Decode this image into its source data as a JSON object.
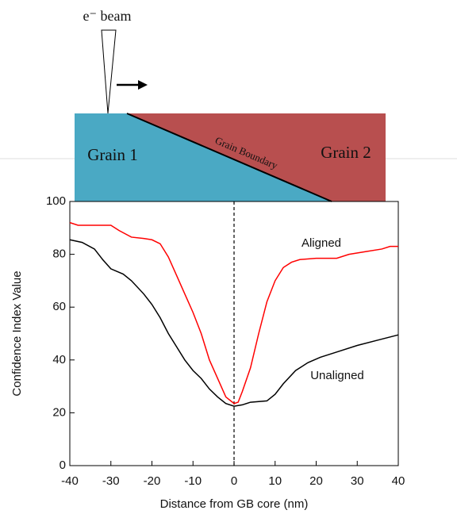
{
  "diagram": {
    "beam_label": "e⁻ beam",
    "grain_1": "Grain 1",
    "grain_2": "Grain 2",
    "boundary": "Grain Boundary"
  },
  "chart_data": {
    "type": "line",
    "x_label": "Distance from GB core (nm)",
    "y_label": "Confidence Index Value",
    "xlim": [
      -40,
      40
    ],
    "ylim": [
      0,
      100
    ],
    "xticks": [
      -40,
      -30,
      -20,
      -10,
      0,
      10,
      20,
      30,
      40
    ],
    "yticks": [
      0,
      20,
      40,
      60,
      80,
      100
    ],
    "vline": 0,
    "series": [
      {
        "name": "Aligned",
        "color": "#ff0000",
        "x": [
          -40,
          -38,
          -35,
          -30,
          -28,
          -25,
          -22,
          -20,
          -18,
          -16,
          -14,
          -12,
          -10,
          -8,
          -6,
          -4,
          -2,
          0,
          1,
          2,
          4,
          6,
          8,
          10,
          12,
          14,
          16,
          20,
          25,
          28,
          32,
          36,
          38,
          40
        ],
        "values": [
          92,
          91,
          91,
          91,
          89,
          86.5,
          86,
          85.5,
          84,
          79,
          72,
          65,
          58,
          50,
          40,
          33,
          26,
          23.5,
          24,
          28,
          37,
          50,
          62,
          70,
          75,
          77,
          78,
          78.5,
          78.5,
          80,
          81,
          82,
          83,
          83
        ]
      },
      {
        "name": "Unaligned",
        "color": "#000000",
        "x": [
          -40,
          -37,
          -34,
          -32,
          -30,
          -27,
          -25,
          -22,
          -20,
          -18,
          -16,
          -14,
          -12,
          -10,
          -8,
          -6,
          -4,
          -2,
          0,
          2,
          4,
          8,
          10,
          12,
          15,
          18,
          21,
          25,
          30,
          35,
          40
        ],
        "values": [
          85.5,
          84.5,
          82,
          78,
          74.5,
          72.5,
          70,
          65,
          61,
          56,
          50,
          45,
          40,
          36,
          33,
          29,
          26,
          23.5,
          22.5,
          23,
          24,
          24.5,
          27,
          31,
          36,
          39,
          41,
          43,
          45.5,
          47.5,
          49.5
        ]
      }
    ]
  }
}
